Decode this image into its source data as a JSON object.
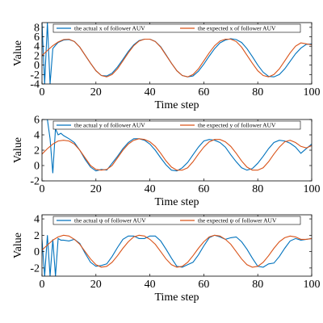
{
  "colors": {
    "actual": "#0072bd",
    "expected": "#d95319"
  },
  "chart_data": [
    {
      "type": "line",
      "xlabel": "Time step",
      "ylabel": "Value",
      "xlim": [
        0,
        100
      ],
      "ylim": [
        -4,
        9
      ],
      "xticks": [
        "0",
        "20",
        "40",
        "60",
        "80",
        "100"
      ],
      "xtick_values": [
        0,
        20,
        40,
        60,
        80,
        100
      ],
      "yticks": [
        "-4",
        "-2",
        "0",
        "2",
        "4",
        "6",
        "8"
      ],
      "ytick_values": [
        -4,
        -2,
        0,
        2,
        4,
        6,
        8
      ],
      "legend": {
        "placement": "top",
        "entries": [
          "the actual x of follower AUV",
          "the expected x of follower AUV"
        ]
      },
      "series": [
        {
          "name": "the actual x of follower AUV",
          "x": [
            0,
            1,
            2,
            3,
            4,
            5,
            6,
            8,
            10,
            12,
            14,
            16,
            18,
            20,
            22,
            24,
            26,
            28,
            30,
            32,
            34,
            36,
            38,
            40,
            42,
            44,
            46,
            48,
            50,
            52,
            54,
            56,
            58,
            60,
            62,
            64,
            66,
            68,
            70,
            72,
            74,
            76,
            78,
            80,
            82,
            84,
            86,
            88,
            90,
            92,
            94,
            96,
            98,
            100
          ],
          "y": [
            9,
            -4,
            9,
            -4,
            3.5,
            4.2,
            4.8,
            5.3,
            5.4,
            5.0,
            3.8,
            2.1,
            0.4,
            -1.2,
            -2.2,
            -2.3,
            -1.7,
            -0.4,
            1.2,
            2.9,
            4.3,
            5.2,
            5.5,
            5.5,
            5.0,
            3.9,
            2.2,
            0.4,
            -1.2,
            -2.2,
            -2.5,
            -2.3,
            -1.3,
            0.2,
            1.9,
            3.5,
            4.7,
            5.3,
            5.6,
            5.4,
            4.8,
            3.5,
            1.8,
            0.0,
            -1.5,
            -2.4,
            -2.5,
            -2.0,
            -0.8,
            0.8,
            2.4,
            3.6,
            4.4,
            4.5
          ]
        },
        {
          "name": "the expected x of follower AUV",
          "x": [
            0,
            2,
            4,
            6,
            8,
            10,
            12,
            14,
            16,
            18,
            20,
            22,
            24,
            26,
            28,
            30,
            32,
            34,
            36,
            38,
            40,
            42,
            44,
            46,
            48,
            50,
            52,
            54,
            56,
            58,
            60,
            62,
            64,
            66,
            68,
            70,
            72,
            74,
            76,
            78,
            80,
            82,
            84,
            86,
            88,
            90,
            92,
            94,
            96,
            98,
            100
          ],
          "y": [
            2.0,
            3.1,
            4.1,
            4.9,
            5.4,
            5.5,
            5.0,
            3.8,
            2.1,
            0.4,
            -1.2,
            -2.2,
            -2.5,
            -2.0,
            -0.8,
            0.9,
            2.6,
            4.1,
            5.1,
            5.5,
            5.5,
            5.0,
            3.8,
            2.1,
            0.4,
            -1.2,
            -2.2,
            -2.5,
            -2.0,
            -0.8,
            0.9,
            2.6,
            4.1,
            5.1,
            5.5,
            5.5,
            5.0,
            3.8,
            2.1,
            0.4,
            -1.2,
            -2.2,
            -2.5,
            -2.0,
            -0.8,
            0.9,
            2.6,
            4.0,
            4.7,
            4.5,
            4.3
          ]
        }
      ]
    },
    {
      "type": "line",
      "xlabel": "Time step",
      "ylabel": "Value",
      "xlim": [
        0,
        100
      ],
      "ylim": [
        -2,
        6
      ],
      "xticks": [
        "0",
        "20",
        "40",
        "60",
        "80",
        "100"
      ],
      "xtick_values": [
        0,
        20,
        40,
        60,
        80,
        100
      ],
      "yticks": [
        "-2",
        "0",
        "2",
        "4",
        "6"
      ],
      "ytick_values": [
        -2,
        0,
        2,
        4,
        6
      ],
      "legend": {
        "placement": "top",
        "entries": [
          "the actual y of follower AUV",
          "the expected y of follower AUV"
        ]
      },
      "series": [
        {
          "name": "the actual y of follower AUV",
          "x": [
            0,
            2,
            3,
            4,
            5,
            6,
            7,
            8,
            10,
            12,
            14,
            16,
            18,
            20,
            22,
            24,
            26,
            28,
            30,
            32,
            34,
            36,
            38,
            40,
            42,
            44,
            46,
            48,
            50,
            52,
            54,
            56,
            58,
            60,
            62,
            64,
            66,
            68,
            70,
            72,
            74,
            76,
            78,
            80,
            82,
            84,
            86,
            88,
            90,
            92,
            94,
            96,
            98,
            100
          ],
          "y": [
            6,
            6,
            3.5,
            -1,
            4.8,
            4.0,
            4.2,
            3.9,
            3.5,
            3.0,
            2.0,
            0.8,
            -0.2,
            -0.7,
            -0.5,
            -0.6,
            0.3,
            1.2,
            2.2,
            3.0,
            3.5,
            3.5,
            3.3,
            2.8,
            2.0,
            1.0,
            0.1,
            -0.6,
            -0.7,
            -0.3,
            0.4,
            1.4,
            2.4,
            3.2,
            3.4,
            3.3,
            3.0,
            2.4,
            1.4,
            0.5,
            -0.3,
            -0.6,
            -0.4,
            0.3,
            1.2,
            2.2,
            3.0,
            3.3,
            3.2,
            2.9,
            2.4,
            1.6,
            2.2,
            2.8
          ]
        },
        {
          "name": "the expected y of follower AUV",
          "x": [
            0,
            2,
            4,
            6,
            8,
            10,
            12,
            14,
            16,
            18,
            20,
            22,
            24,
            26,
            28,
            30,
            32,
            34,
            36,
            38,
            40,
            42,
            44,
            46,
            48,
            50,
            52,
            54,
            56,
            58,
            60,
            62,
            64,
            66,
            68,
            70,
            72,
            74,
            76,
            78,
            80,
            82,
            84,
            86,
            88,
            90,
            92,
            94,
            96,
            98,
            100
          ],
          "y": [
            1.5,
            2.2,
            2.8,
            3.2,
            3.3,
            3.2,
            2.8,
            2.0,
            1.0,
            0.0,
            -0.5,
            -0.6,
            -0.5,
            0.0,
            1.0,
            2.0,
            2.8,
            3.3,
            3.5,
            3.4,
            3.1,
            2.5,
            1.6,
            0.6,
            -0.2,
            -0.6,
            -0.6,
            -0.3,
            0.5,
            1.5,
            2.4,
            3.1,
            3.4,
            3.4,
            3.1,
            2.5,
            1.6,
            0.6,
            -0.2,
            -0.6,
            -0.6,
            -0.3,
            0.5,
            1.5,
            2.4,
            3.1,
            3.3,
            3.0,
            2.5,
            2.3,
            2.6
          ]
        }
      ]
    },
    {
      "type": "line",
      "xlabel": "Time step",
      "ylabel": "Value",
      "xlim": [
        0,
        100
      ],
      "ylim": [
        -3,
        4.5
      ],
      "xticks": [
        "0",
        "20",
        "40",
        "60",
        "80",
        "100"
      ],
      "xtick_values": [
        0,
        20,
        40,
        60,
        80,
        100
      ],
      "yticks": [
        "-2",
        "0",
        "2",
        "4"
      ],
      "ytick_values": [
        -2,
        0,
        2,
        4
      ],
      "legend": {
        "placement": "top",
        "entries": [
          "the actual ψ of follower AUV",
          "the expected ψ of follower AUV"
        ]
      },
      "series": [
        {
          "name": "the actual ψ of follower AUV",
          "x": [
            0,
            1,
            2,
            3,
            4,
            5,
            6,
            7,
            8,
            10,
            12,
            14,
            16,
            18,
            20,
            22,
            24,
            26,
            28,
            30,
            32,
            34,
            36,
            38,
            40,
            42,
            44,
            46,
            48,
            50,
            52,
            54,
            56,
            58,
            60,
            62,
            64,
            66,
            68,
            70,
            72,
            74,
            76,
            78,
            80,
            82,
            84,
            86,
            88,
            90,
            92,
            94,
            96,
            98,
            100
          ],
          "y": [
            1.5,
            -3,
            2,
            -3,
            1.5,
            -3,
            1.6,
            1.4,
            1.4,
            1.3,
            1.5,
            1.0,
            -0.2,
            -1.3,
            -1.8,
            -1.7,
            -1.5,
            -0.6,
            0.5,
            1.5,
            1.9,
            1.9,
            1.6,
            1.6,
            1.9,
            1.9,
            1.3,
            0.3,
            -0.8,
            -1.8,
            -1.9,
            -1.6,
            -1.3,
            -0.4,
            0.7,
            1.7,
            2.0,
            1.8,
            1.5,
            1.7,
            1.8,
            1.2,
            0.3,
            -0.8,
            -1.8,
            -1.9,
            -1.5,
            -1.4,
            -0.6,
            0.4,
            1.3,
            1.6,
            1.4,
            1.5,
            1.6
          ]
        },
        {
          "name": "the expected ψ of follower AUV",
          "x": [
            0,
            2,
            4,
            6,
            8,
            10,
            12,
            14,
            16,
            18,
            20,
            22,
            24,
            26,
            28,
            30,
            32,
            34,
            36,
            38,
            40,
            42,
            44,
            46,
            48,
            50,
            52,
            54,
            56,
            58,
            60,
            62,
            64,
            66,
            68,
            70,
            72,
            74,
            76,
            78,
            80,
            82,
            84,
            86,
            88,
            90,
            92,
            94,
            96,
            98,
            100
          ],
          "y": [
            0.2,
            0.8,
            1.4,
            1.8,
            2.0,
            1.9,
            1.5,
            0.9,
            0.0,
            -0.9,
            -1.6,
            -1.9,
            -1.8,
            -1.3,
            -0.5,
            0.4,
            1.2,
            1.8,
            2.0,
            1.9,
            1.5,
            0.9,
            0.0,
            -0.9,
            -1.6,
            -1.9,
            -1.8,
            -1.3,
            -0.5,
            0.4,
            1.2,
            1.8,
            2.0,
            1.9,
            1.5,
            0.9,
            0.0,
            -0.9,
            -1.6,
            -1.9,
            -1.8,
            -1.3,
            -0.5,
            0.4,
            1.2,
            1.7,
            1.9,
            1.8,
            1.5,
            1.5,
            1.6
          ]
        }
      ]
    }
  ]
}
